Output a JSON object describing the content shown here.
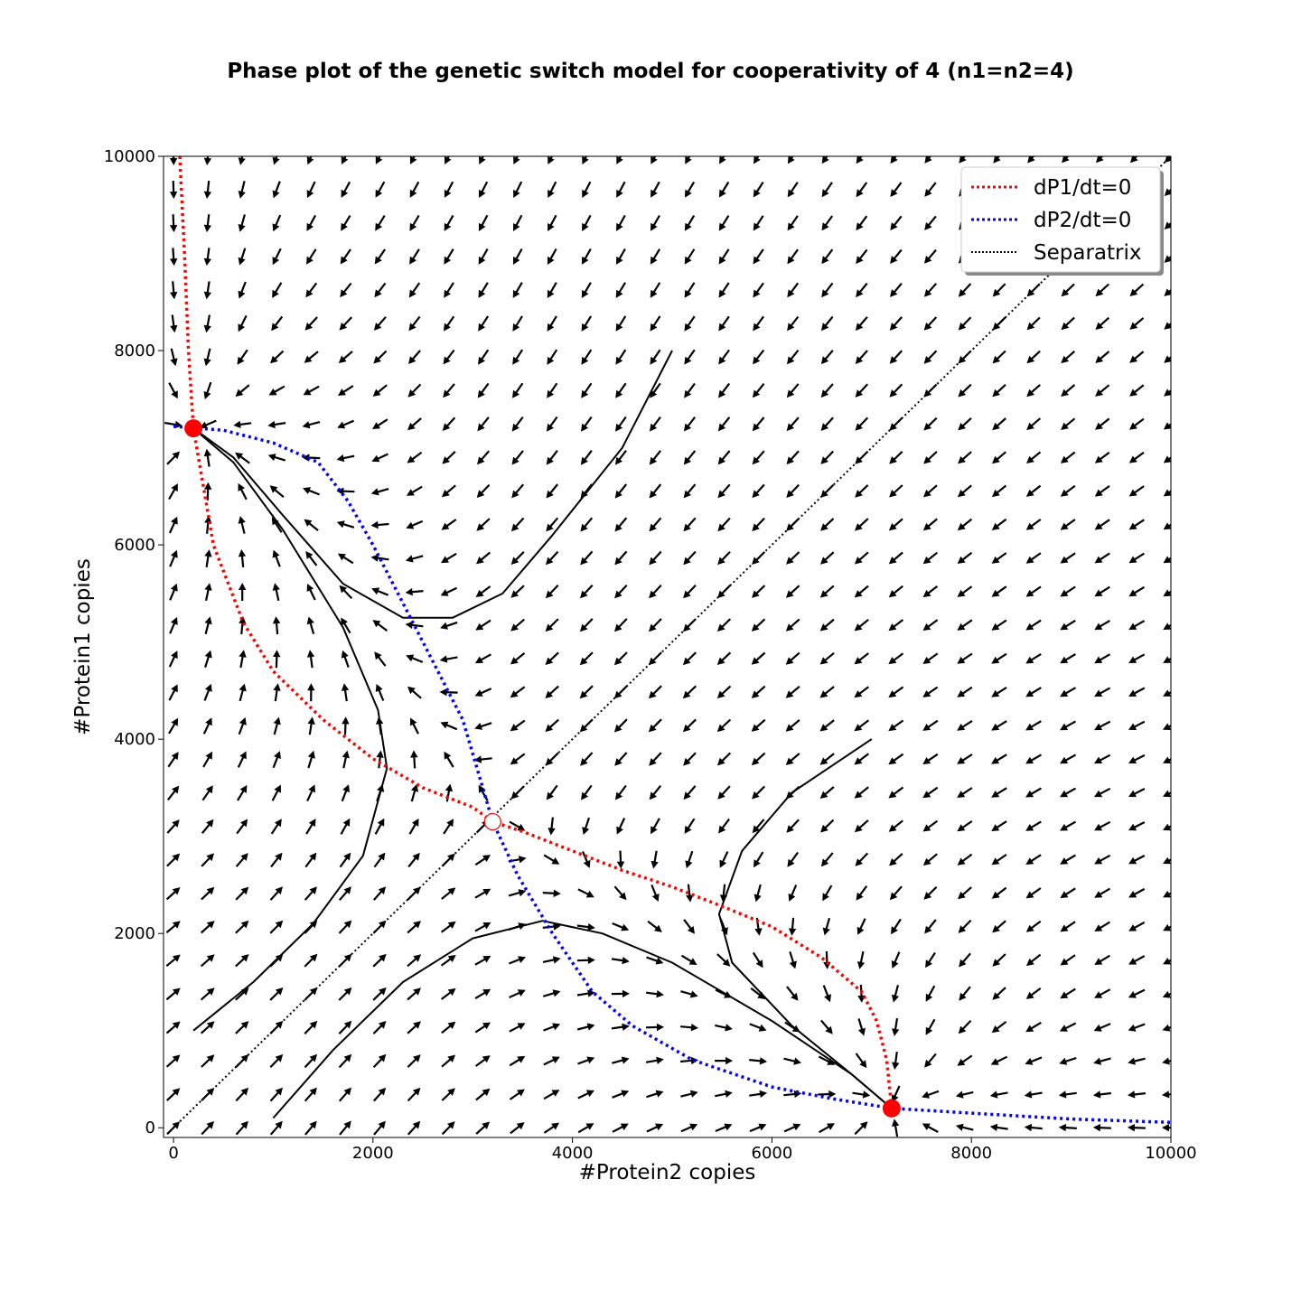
{
  "chart_data": {
    "type": "phase_plot",
    "title": "Phase plot of the genetic switch model for cooperativity of 4 (n1=n2=4)",
    "xlabel": "#Protein2 copies",
    "ylabel": "#Protein1 copies",
    "xlim": [
      -100,
      10000
    ],
    "ylim": [
      -100,
      10000
    ],
    "x_ticks": [
      "0",
      "2000",
      "4000",
      "6000",
      "8000",
      "10000"
    ],
    "y_ticks": [
      "0",
      "2000",
      "4000",
      "6000",
      "8000",
      "10000"
    ],
    "grid": false,
    "legend_position": "top-right",
    "legend": [
      {
        "label": "dP1/dt=0",
        "color": "#ff0000",
        "style": "dotted"
      },
      {
        "label": "dP2/dt=0",
        "color": "#0000ff",
        "style": "dotted"
      },
      {
        "label": "Separatrix",
        "color": "#000000",
        "style": "dotted"
      }
    ],
    "nullcline_p1": [
      [
        63,
        10000
      ],
      [
        110,
        9000
      ],
      [
        150,
        8000
      ],
      [
        200,
        7200
      ],
      [
        400,
        6000
      ],
      [
        700,
        5200
      ],
      [
        1000,
        4700
      ],
      [
        1500,
        4200
      ],
      [
        2000,
        3800
      ],
      [
        2500,
        3500
      ],
      [
        3000,
        3300
      ],
      [
        3200,
        3150
      ],
      [
        3500,
        3050
      ],
      [
        4000,
        2850
      ],
      [
        4500,
        2650
      ],
      [
        5000,
        2480
      ],
      [
        5500,
        2280
      ],
      [
        6000,
        2070
      ],
      [
        6500,
        1750
      ],
      [
        6900,
        1400
      ],
      [
        7050,
        1100
      ],
      [
        7150,
        700
      ],
      [
        7200,
        200
      ]
    ],
    "nullcline_p2": [
      [
        0,
        7220
      ],
      [
        500,
        7180
      ],
      [
        1000,
        7050
      ],
      [
        1450,
        6850
      ],
      [
        1750,
        6450
      ],
      [
        2000,
        6000
      ],
      [
        2300,
        5400
      ],
      [
        2600,
        4800
      ],
      [
        2900,
        4200
      ],
      [
        3200,
        3150
      ],
      [
        3450,
        2600
      ],
      [
        3800,
        2000
      ],
      [
        4200,
        1400
      ],
      [
        4600,
        1050
      ],
      [
        5200,
        700
      ],
      [
        6000,
        420
      ],
      [
        6600,
        300
      ],
      [
        7200,
        200
      ],
      [
        8000,
        150
      ],
      [
        9000,
        90
      ],
      [
        10000,
        55
      ]
    ],
    "separatrix": [
      [
        0,
        0
      ],
      [
        10000,
        10000
      ]
    ],
    "stable_points": [
      [
        200,
        7200
      ],
      [
        7200,
        200
      ]
    ],
    "unstable_point": [
      3200,
      3150
    ],
    "trajectories": [
      [
        [
          5000,
          8000
        ],
        [
          4500,
          7000
        ],
        [
          3800,
          6100
        ],
        [
          3300,
          5500
        ],
        [
          2800,
          5250
        ],
        [
          2300,
          5250
        ],
        [
          1700,
          5600
        ],
        [
          1100,
          6300
        ],
        [
          600,
          6900
        ],
        [
          200,
          7200
        ]
      ],
      [
        [
          200,
          1000
        ],
        [
          800,
          1500
        ],
        [
          1400,
          2100
        ],
        [
          1900,
          2800
        ],
        [
          2140,
          3700
        ],
        [
          2050,
          4300
        ],
        [
          1700,
          5150
        ],
        [
          1100,
          6150
        ],
        [
          600,
          6850
        ],
        [
          200,
          7200
        ]
      ],
      [
        [
          7000,
          4000
        ],
        [
          6200,
          3450
        ],
        [
          5700,
          2850
        ],
        [
          5470,
          2200
        ],
        [
          5600,
          1700
        ],
        [
          6200,
          1050
        ],
        [
          6800,
          550
        ],
        [
          7200,
          200
        ]
      ],
      [
        [
          1000,
          100
        ],
        [
          1600,
          800
        ],
        [
          2300,
          1500
        ],
        [
          3000,
          1950
        ],
        [
          3700,
          2130
        ],
        [
          4300,
          2000
        ],
        [
          5000,
          1700
        ],
        [
          6000,
          1100
        ],
        [
          6800,
          550
        ],
        [
          7200,
          200
        ]
      ]
    ],
    "vector_field": {
      "grid_min": 0,
      "grid_max": 10000,
      "grid_count": 30,
      "model": {
        "alpha": 7200,
        "K": 3150,
        "n": 4,
        "leak": 0
      }
    }
  }
}
